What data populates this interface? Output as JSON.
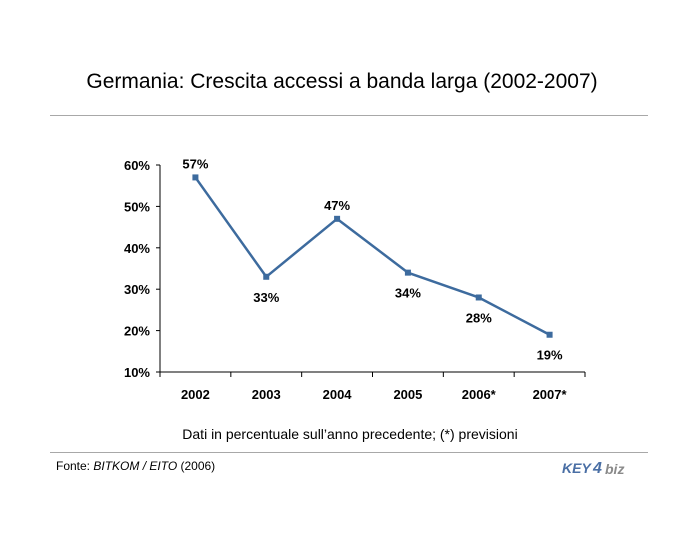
{
  "title": "Germania: Crescita accessi a banda larga (2002-2007)",
  "caption": "Dati in percentuale sull’anno precedente; (*) previsioni",
  "source": {
    "prefix": "Fonte: ",
    "name": "BITKOM / EITO",
    "suffix": " (2006)"
  },
  "logo": {
    "text_left": "KEY",
    "text_mid": "4",
    "text_right": "biz"
  },
  "colors": {
    "line": "#3d6b9e",
    "logo_blue": "#4a6fa5",
    "logo_gray": "#8a8a8a"
  },
  "chart_data": {
    "type": "line",
    "categories": [
      "2002",
      "2003",
      "2004",
      "2005",
      "2006*",
      "2007*"
    ],
    "values": [
      57,
      33,
      47,
      34,
      28,
      19
    ],
    "data_labels": [
      "57%",
      "33%",
      "47%",
      "34%",
      "28%",
      "19%"
    ],
    "ylim": [
      10,
      60
    ],
    "yticks": [
      10,
      20,
      30,
      40,
      50,
      60
    ],
    "ytick_labels": [
      "10%",
      "20%",
      "30%",
      "40%",
      "50%",
      "60%"
    ],
    "label_positions": [
      "above",
      "below",
      "above",
      "below",
      "below",
      "below"
    ],
    "grid": false,
    "legend": "none"
  }
}
